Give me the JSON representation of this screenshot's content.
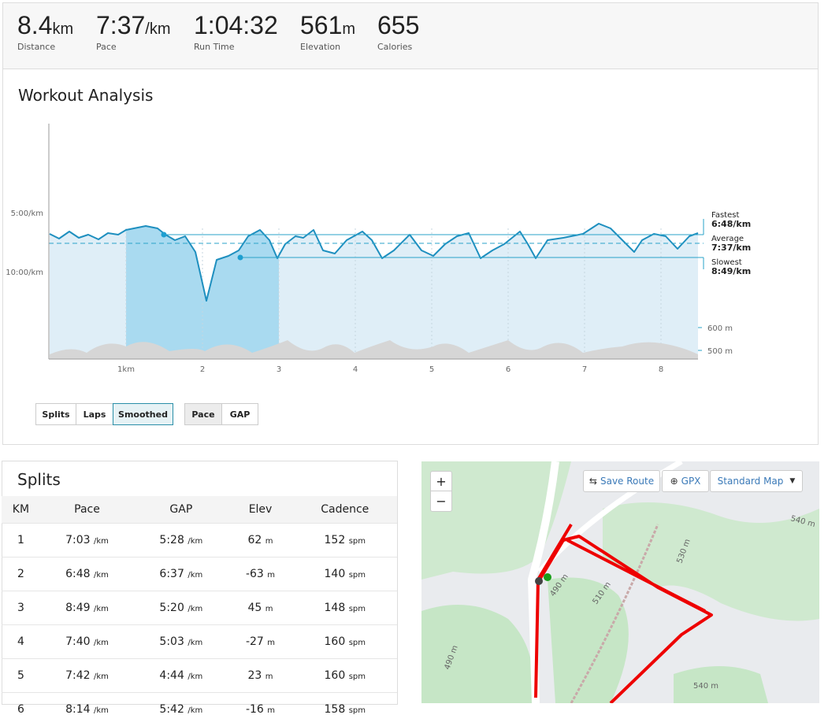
{
  "stats": [
    {
      "value": "8.4",
      "unit": "km",
      "label": "Distance"
    },
    {
      "value": "7:37",
      "unit": "/km",
      "label": "Pace"
    },
    {
      "value": "1:04:32",
      "label": "Run Time"
    },
    {
      "value": "561",
      "unit": "m",
      "label": "Elevation"
    },
    {
      "value": "655",
      "label": "Calories"
    }
  ],
  "analysis": {
    "title": "Workout Analysis",
    "y_labels": [
      "5:00/km",
      "10:00/km"
    ],
    "elev_labels": [
      "600 m",
      "500 m"
    ],
    "x_labels": [
      "1km",
      "2",
      "3",
      "4",
      "5",
      "6",
      "7",
      "8"
    ],
    "legend": [
      {
        "name": "Fastest",
        "value": "6:48/km"
      },
      {
        "name": "Average",
        "value": "7:37/km"
      },
      {
        "name": "Slowest",
        "value": "8:49/km"
      }
    ],
    "view_buttons": [
      "Splits",
      "Laps",
      "Smoothed"
    ],
    "metric_buttons": [
      "Pace",
      "GAP"
    ]
  },
  "splits": {
    "title": "Splits",
    "columns": [
      "KM",
      "Pace",
      "GAP",
      "Elev",
      "Cadence"
    ],
    "units": {
      "pace": "/km",
      "gap": "/km",
      "elev": "m",
      "cadence": "spm"
    },
    "rows": [
      [
        "1",
        "7:03",
        "5:28",
        "62",
        "152"
      ],
      [
        "2",
        "6:48",
        "6:37",
        "-63",
        "140"
      ],
      [
        "3",
        "8:49",
        "5:20",
        "45",
        "148"
      ],
      [
        "4",
        "7:40",
        "5:03",
        "-27",
        "160"
      ],
      [
        "5",
        "7:42",
        "4:44",
        "23",
        "160"
      ],
      [
        "6",
        "8:14",
        "5:42",
        "-16",
        "158"
      ]
    ]
  },
  "map": {
    "zoom_in": "+",
    "zoom_out": "−",
    "save_route": "Save Route",
    "gpx": "GPX",
    "style": "Standard Map",
    "contours": [
      "540 m",
      "530 m",
      "510 m",
      "490 m",
      "490 m",
      "540 m"
    ]
  }
}
